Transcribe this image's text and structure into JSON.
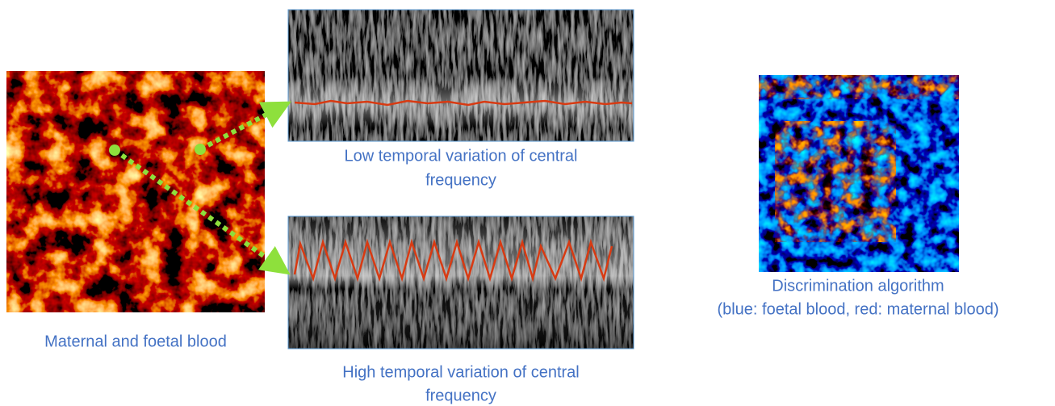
{
  "left_image": {
    "caption": "Maternal and foetal blood"
  },
  "top_spectrogram": {
    "caption_lines": [
      "Low temporal variation of central",
      "frequency"
    ]
  },
  "bottom_spectrogram": {
    "caption_lines": [
      "High temporal variation of central",
      "frequency"
    ]
  },
  "right_image": {
    "caption_lines": [
      "Discrimination algorithm",
      "(blue: foetal blood, red: maternal blood)"
    ]
  }
}
